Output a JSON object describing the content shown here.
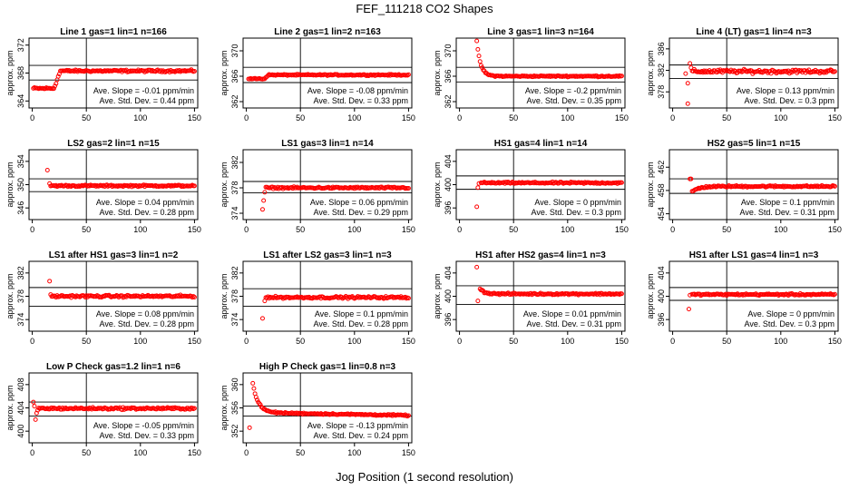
{
  "figure": {
    "title": "FEF_111218  CO2 Shapes",
    "xlabel": "Jog Position (1 second resolution)",
    "ylabel": "approx. ppm",
    "marker_color": "#ff0000",
    "x_ticks": [
      0,
      50,
      100,
      150
    ],
    "xlim": [
      -3,
      153
    ]
  },
  "chart_data": [
    {
      "type": "scatter",
      "title": "Line 1 gas=1 lin=1 n=166",
      "ylim": [
        363,
        373
      ],
      "yticks": [
        364,
        368,
        372
      ],
      "hlines": [
        367.0,
        369.1
      ],
      "vline": 50,
      "slope_text": "Ave. Slope = -0.01 ppm/min",
      "std_text": "Ave. Std. Dev. = 0.44 ppm",
      "shape": {
        "kind": "step",
        "start": 1,
        "pre": 365.8,
        "post": 368.3,
        "rise_at": 20,
        "rise_end": 26,
        "noise": 0.12
      }
    },
    {
      "type": "scatter",
      "title": "Line 2 gas=1 lin=2 n=163",
      "ylim": [
        361,
        372
      ],
      "yticks": [
        362,
        366,
        370
      ],
      "hlines": [
        365.0,
        367.4
      ],
      "vline": 50,
      "slope_text": "Ave. Slope = -0.08 ppm/min",
      "std_text": "Ave. Std. Dev. = 0.33 ppm",
      "shape": {
        "kind": "step",
        "start": 2,
        "pre": 365.6,
        "post": 366.2,
        "rise_at": 17,
        "rise_end": 20,
        "noise": 0.08
      }
    },
    {
      "type": "scatter",
      "title": "Line 3 gas=1 lin=3 n=164",
      "ylim": [
        361,
        372
      ],
      "yticks": [
        362,
        366,
        370
      ],
      "hlines": [
        365.1,
        367.4
      ],
      "vline": 50,
      "slope_text": "Ave. Slope = -0.2 ppm/min",
      "std_text": "Ave. Std. Dev. = 0.35 ppm",
      "shape": {
        "kind": "decay",
        "start": 16,
        "peak": 371.5,
        "post": 366.0,
        "tau": 3.5,
        "noise": 0.08
      }
    },
    {
      "type": "scatter",
      "title": "Line 4 (LT) gas=1 lin=4 n=3",
      "ylim": [
        375,
        388
      ],
      "yticks": [
        378,
        382,
        386
      ],
      "hlines": [
        380.5,
        383.0
      ],
      "vline": 50,
      "slope_text": "Ave. Slope = 0.13 ppm/min",
      "std_text": "Ave. Std. Dev. = 0.3 ppm",
      "shape": {
        "kind": "flat",
        "start": 18,
        "post": 381.8,
        "noise": 0.28,
        "outliers": [
          [
            12,
            381.4
          ],
          [
            14,
            379.6
          ],
          [
            14,
            375.8
          ],
          [
            16,
            383.3
          ],
          [
            17,
            382.5
          ]
        ]
      }
    },
    {
      "type": "scatter",
      "title": "LS2 gas=2 lin=1 n=15",
      "ylim": [
        344,
        356
      ],
      "yticks": [
        346,
        350,
        354
      ],
      "hlines": [
        348.8,
        351.0
      ],
      "vline": 50,
      "slope_text": "Ave. Slope = 0.04 ppm/min",
      "std_text": "Ave. Std. Dev. = 0.28 ppm",
      "shape": {
        "kind": "flat",
        "start": 17,
        "post": 349.8,
        "noise": 0.12,
        "outliers": [
          [
            14,
            352.5
          ],
          [
            16,
            350.2
          ]
        ]
      }
    },
    {
      "type": "scatter",
      "title": "LS1 gas=3 lin=1 n=14",
      "ylim": [
        373,
        384
      ],
      "yticks": [
        374,
        378,
        382
      ],
      "hlines": [
        377.2,
        379.0
      ],
      "vline": 50,
      "slope_text": "Ave. Slope = 0.06 ppm/min",
      "std_text": "Ave. Std. Dev. = 0.29 ppm",
      "shape": {
        "kind": "flat",
        "start": 18,
        "post": 378.0,
        "noise": 0.12,
        "outliers": [
          [
            15,
            374.6
          ],
          [
            16,
            376.0
          ],
          [
            17,
            377.3
          ]
        ]
      }
    },
    {
      "type": "scatter",
      "title": "HS1 gas=4 lin=1 n=14",
      "ylim": [
        394,
        406
      ],
      "yticks": [
        396,
        400,
        404
      ],
      "hlines": [
        399.2,
        401.5
      ],
      "vline": 50,
      "slope_text": "Ave. Slope = 0 ppm/min",
      "std_text": "Ave. Std. Dev. = 0.3 ppm",
      "shape": {
        "kind": "flat",
        "start": 20,
        "post": 400.3,
        "noise": 0.12,
        "outliers": [
          [
            16,
            396.2
          ],
          [
            17,
            399.5
          ],
          [
            18,
            400.2
          ]
        ]
      }
    },
    {
      "type": "scatter",
      "title": "HS2 gas=5 lin=1 n=15",
      "ylim": [
        453,
        465
      ],
      "yticks": [
        454,
        458,
        462
      ],
      "hlines": [
        457.5,
        460.0
      ],
      "vline": 50,
      "slope_text": "Ave. Slope = 0.1 ppm/min",
      "std_text": "Ave. Std. Dev. = 0.31 ppm",
      "shape": {
        "kind": "dip",
        "start": 16,
        "peak": 459.9,
        "low": 457.9,
        "post": 458.7,
        "noise": 0.12
      }
    },
    {
      "type": "scatter",
      "title": "LS1 after HS1 gas=3 lin=1 n=2",
      "ylim": [
        372,
        384
      ],
      "yticks": [
        374,
        378,
        382
      ],
      "hlines": [
        376.3,
        379.5
      ],
      "vline": 50,
      "slope_text": "Ave. Slope = 0.08 ppm/min",
      "std_text": "Ave. Std. Dev. = 0.28 ppm",
      "shape": {
        "kind": "flat",
        "start": 18,
        "post": 378.0,
        "noise": 0.15,
        "outliers": [
          [
            16,
            380.6
          ],
          [
            17,
            378.3
          ]
        ]
      }
    },
    {
      "type": "scatter",
      "title": "LS1 after LS2 gas=3 lin=1 n=3",
      "ylim": [
        372,
        384
      ],
      "yticks": [
        374,
        378,
        382
      ],
      "hlines": [
        376.3,
        379.3
      ],
      "vline": 50,
      "slope_text": "Ave. Slope = 0.1 ppm/min",
      "std_text": "Ave. Std. Dev. = 0.28 ppm",
      "shape": {
        "kind": "flat",
        "start": 18,
        "post": 377.8,
        "noise": 0.15,
        "outliers": [
          [
            15,
            374.2
          ],
          [
            17,
            377.2
          ]
        ]
      }
    },
    {
      "type": "scatter",
      "title": "HS1 after HS2 gas=4 lin=1 n=3",
      "ylim": [
        394,
        406
      ],
      "yticks": [
        396,
        400,
        404
      ],
      "hlines": [
        398.6,
        401.8
      ],
      "vline": 50,
      "slope_text": "Ave. Slope = 0.01 ppm/min",
      "std_text": "Ave. Std. Dev. = 0.31 ppm",
      "shape": {
        "kind": "decay",
        "start": 19,
        "peak": 401.3,
        "post": 400.4,
        "tau": 4,
        "noise": 0.12,
        "outliers": [
          [
            16,
            405.0
          ],
          [
            17,
            399.2
          ]
        ]
      }
    },
    {
      "type": "scatter",
      "title": "HS1 after LS1 gas=4 lin=1 n=3",
      "ylim": [
        394,
        406
      ],
      "yticks": [
        396,
        400,
        404
      ],
      "hlines": [
        399.3,
        401.5
      ],
      "vline": 50,
      "slope_text": "Ave. Slope = 0 ppm/min",
      "std_text": "Ave. Std. Dev. = 0.3 ppm",
      "shape": {
        "kind": "flat",
        "start": 18,
        "post": 400.3,
        "noise": 0.12,
        "outliers": [
          [
            15,
            397.8
          ],
          [
            16,
            400.2
          ]
        ]
      }
    },
    {
      "type": "scatter",
      "title": "Low P Check gas=1.2 lin=1 n=6",
      "ylim": [
        398,
        410
      ],
      "yticks": [
        400,
        404,
        408
      ],
      "hlines": [
        402.6,
        405.0
      ],
      "vline": 50,
      "slope_text": "Ave. Slope = -0.05 ppm/min",
      "std_text": "Ave. Std. Dev. = 0.33 ppm",
      "shape": {
        "kind": "flat",
        "start": 6,
        "post": 403.9,
        "noise": 0.15,
        "outliers": [
          [
            1,
            405.0
          ],
          [
            2,
            404.3
          ],
          [
            3,
            402.0
          ],
          [
            4,
            403.1
          ],
          [
            5,
            403.6
          ]
        ]
      }
    },
    {
      "type": "scatter",
      "title": "High P Check gas=1 lin=0.8 n=3",
      "ylim": [
        350,
        362
      ],
      "yticks": [
        352,
        356,
        360
      ],
      "hlines": [
        354.6,
        356.3
      ],
      "vline": 50,
      "slope_text": "Ave. Slope = -0.13 ppm/min",
      "std_text": "Ave. Std. Dev. = 0.24 ppm",
      "shape": {
        "kind": "decay",
        "start": 6,
        "peak": 360.2,
        "post": 355.2,
        "tau": 5,
        "noise": 0.1,
        "drift": -0.5,
        "outliers": [
          [
            3,
            352.6
          ]
        ]
      }
    }
  ]
}
